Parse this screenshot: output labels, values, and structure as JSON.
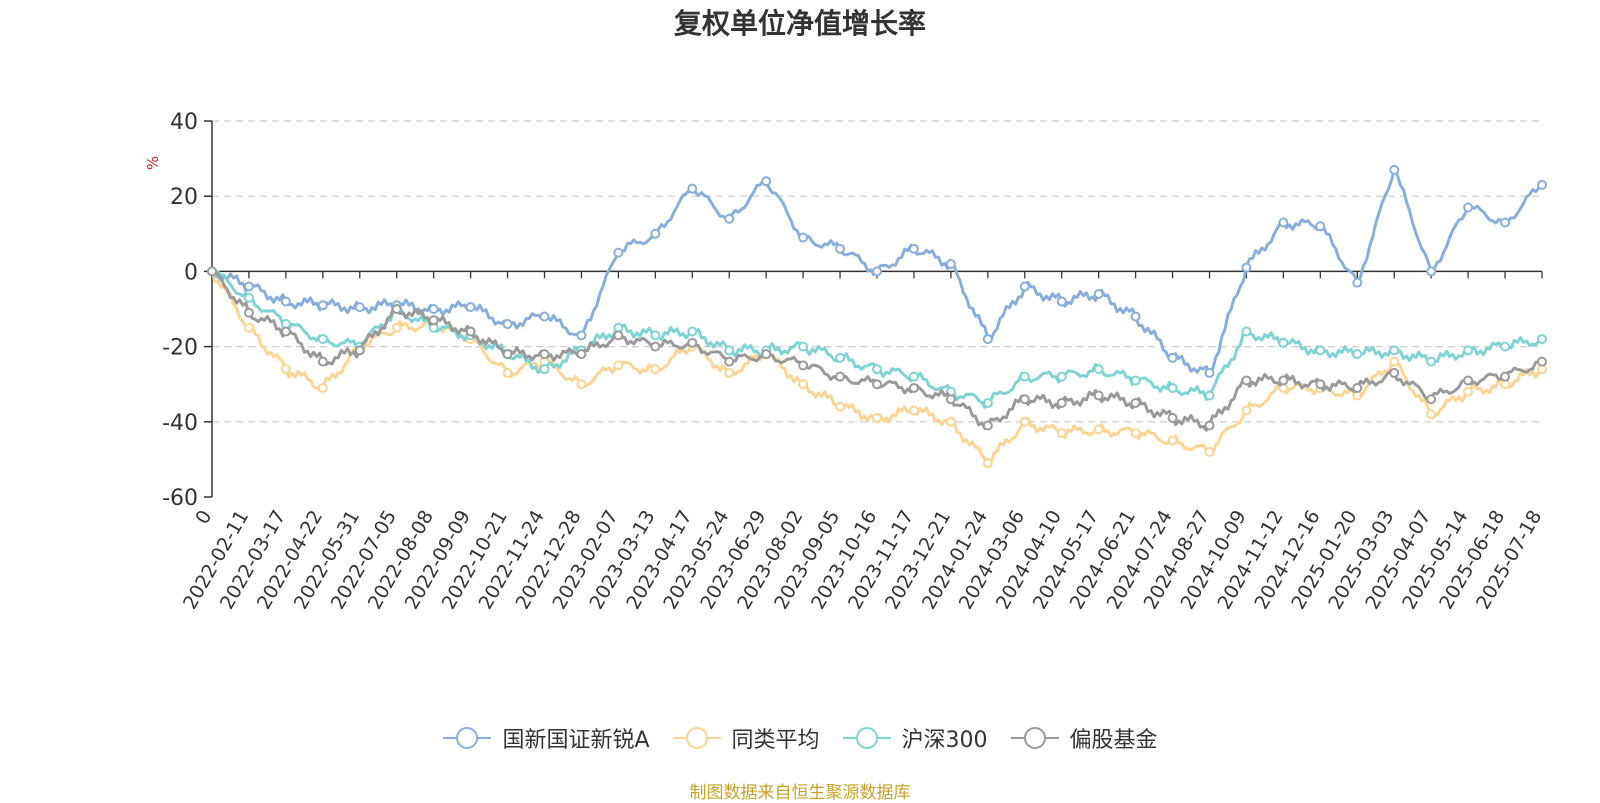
{
  "page": {
    "title": "复权单位净值增长率",
    "source": "制图数据来自恒生聚源数据库"
  },
  "chart_data": {
    "type": "line",
    "title": "复权单位净值增长率",
    "ylabel": "%",
    "ylim": [
      -60,
      40
    ],
    "yticks": [
      -60,
      -40,
      -20,
      0,
      20,
      40
    ],
    "grid": true,
    "legend_position": "bottom",
    "x_tick_labels": [
      "0",
      "2022-02-11",
      "2022-03-17",
      "2022-04-22",
      "2022-05-31",
      "2022-07-05",
      "2022-08-08",
      "2022-09-09",
      "2022-10-21",
      "2022-11-24",
      "2022-12-28",
      "2023-02-07",
      "2023-03-13",
      "2023-04-17",
      "2023-05-24",
      "2023-06-29",
      "2023-08-02",
      "2023-09-05",
      "2023-10-16",
      "2023-11-17",
      "2023-12-21",
      "2024-01-24",
      "2024-03-06",
      "2024-04-10",
      "2024-05-17",
      "2024-06-21",
      "2024-07-24",
      "2024-08-27",
      "2024-10-09",
      "2024-11-12",
      "2024-12-16",
      "2025-01-20",
      "2025-03-03",
      "2025-04-07",
      "2025-05-14",
      "2025-06-18",
      "2025-07-18"
    ],
    "series": [
      {
        "name": "国新国证新锐A",
        "color": "#8aaedb",
        "values": [
          0,
          -4,
          -8,
          -9,
          -9.5,
          -9,
          -10,
          -9.5,
          -14,
          -12,
          -17,
          5,
          10,
          22,
          14,
          24,
          9,
          6,
          0,
          6,
          2,
          -18,
          -4,
          -8,
          -6,
          -12,
          -23,
          -27,
          1,
          13,
          12,
          -3,
          27,
          0,
          17,
          13,
          23
        ]
      },
      {
        "name": "同类平均",
        "color": "#fbd593",
        "values": [
          0,
          -15,
          -26,
          -31,
          -20,
          -15,
          -14,
          -18,
          -27,
          -24,
          -30,
          -25,
          -26,
          -20,
          -27,
          -22,
          -30,
          -36,
          -39,
          -37,
          -40,
          -51,
          -40,
          -43,
          -42,
          -43,
          -45,
          -48,
          -37,
          -31,
          -31,
          -33,
          -24,
          -38,
          -32,
          -30,
          -26
        ]
      },
      {
        "name": "沪深300",
        "color": "#7fd3d3",
        "values": [
          0,
          -7,
          -14,
          -18,
          -20,
          -10,
          -15,
          -17,
          -22,
          -26,
          -21,
          -15,
          -17,
          -16,
          -21,
          -21,
          -20,
          -23,
          -26,
          -28,
          -32,
          -35,
          -28,
          -28,
          -26,
          -29,
          -31,
          -33,
          -16,
          -19,
          -21,
          -22,
          -21,
          -24,
          -21,
          -20,
          -18
        ]
      },
      {
        "name": "偏股基金",
        "color": "#9a9a9a",
        "values": [
          0,
          -11,
          -16,
          -24,
          -21,
          -10,
          -13,
          -16,
          -22,
          -22,
          -22,
          -17,
          -20,
          -19,
          -24,
          -22,
          -25,
          -28,
          -30,
          -31,
          -34,
          -41,
          -34,
          -35,
          -33,
          -35,
          -39,
          -41,
          -29,
          -29,
          -30,
          -31,
          -27,
          -34,
          -29,
          -28,
          -24
        ]
      }
    ]
  },
  "legend": {
    "items": [
      "国新国证新锐A",
      "同类平均",
      "沪深300",
      "偏股基金"
    ]
  }
}
